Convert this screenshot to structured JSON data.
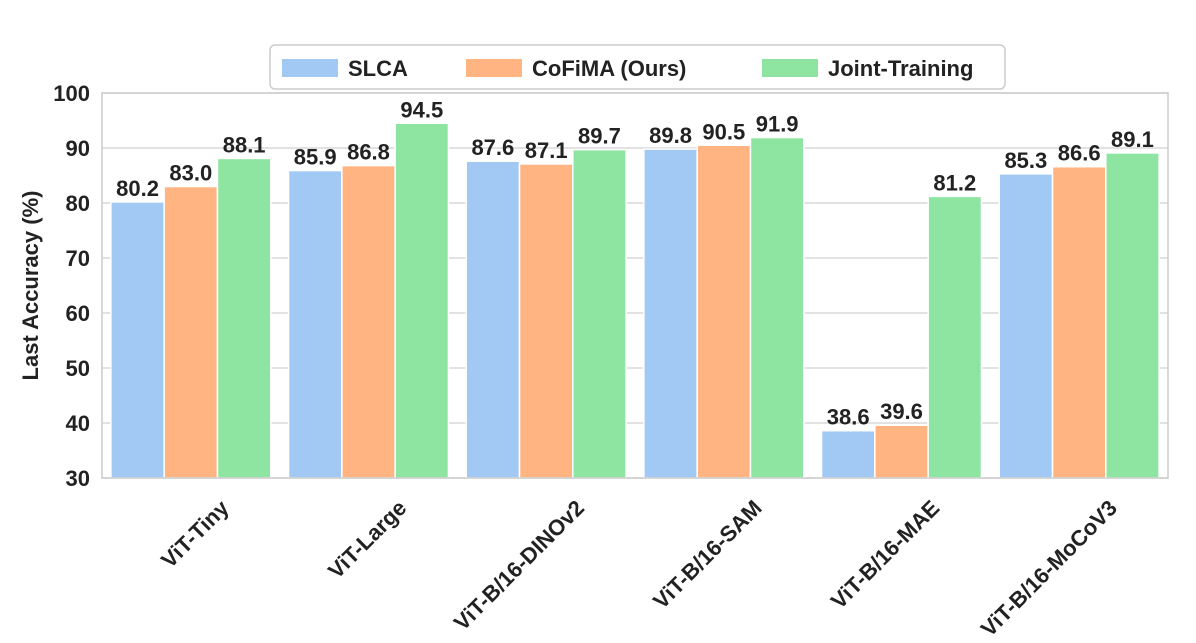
{
  "chart_data": {
    "type": "bar",
    "title": "",
    "xlabel": "",
    "ylabel": "Last Accuracy (%)",
    "ylim": [
      30,
      100
    ],
    "yticks": [
      30,
      40,
      50,
      60,
      70,
      80,
      90,
      100
    ],
    "grid": true,
    "legend_position": "top-center",
    "categories": [
      "ViT-Tiny",
      "ViT-Large",
      "ViT-B/16-DINOv2",
      "ViT-B/16-SAM",
      "ViT-B/16-MAE",
      "ViT-B/16-MoCoV3"
    ],
    "series": [
      {
        "name": "SLCA",
        "color": "#a1c9f4",
        "values": [
          80.2,
          85.9,
          87.6,
          89.8,
          38.6,
          85.3
        ]
      },
      {
        "name": "CoFiMA (Ours)",
        "color": "#ffb482",
        "values": [
          83.0,
          86.8,
          87.1,
          90.5,
          39.6,
          86.6
        ]
      },
      {
        "name": "Joint-Training",
        "color": "#8de5a1",
        "values": [
          88.1,
          94.5,
          89.7,
          91.9,
          81.2,
          89.1
        ]
      }
    ]
  }
}
